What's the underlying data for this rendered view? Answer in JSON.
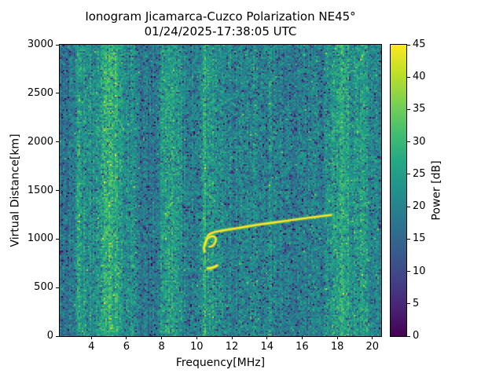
{
  "chart_data": {
    "type": "heatmap",
    "title": "Ionogram Jicamarca-Cuzco Polarization NE45°",
    "subtitle": "01/24/2025-17:38:05 UTC",
    "xlabel": "Frequency[MHz]",
    "ylabel": "Virtual Distance[km]",
    "colorbar_label": "Power [dB]",
    "xlim": [
      2.2,
      20.5
    ],
    "ylim": [
      0,
      3000
    ],
    "clim": [
      0,
      45
    ],
    "x_ticks": [
      4,
      6,
      8,
      10,
      12,
      14,
      16,
      18,
      20
    ],
    "y_ticks": [
      0,
      500,
      1000,
      1500,
      2000,
      2500,
      3000
    ],
    "colorbar_ticks": [
      0,
      5,
      10,
      15,
      20,
      25,
      30,
      35,
      40,
      45
    ],
    "colormap": "viridis",
    "colormap_stops": [
      [
        0.0,
        "#440154"
      ],
      [
        0.1,
        "#482475"
      ],
      [
        0.2,
        "#414487"
      ],
      [
        0.3,
        "#355f8d"
      ],
      [
        0.4,
        "#2a788e"
      ],
      [
        0.5,
        "#21918c"
      ],
      [
        0.6,
        "#22a884"
      ],
      [
        0.7,
        "#44bf70"
      ],
      [
        0.8,
        "#7ad151"
      ],
      [
        0.9,
        "#bddf26"
      ],
      [
        1.0,
        "#fde725"
      ]
    ],
    "trace_color": "#fde725",
    "trace_glow_color": "#7ad151",
    "noise": {
      "seed": 20250124,
      "base_db": 20.5,
      "amplitude_db": 9,
      "column_jitter_db": 5,
      "dark_speckle_prob": 0.08,
      "bright_speckle_prob": 0.015
    },
    "interference_bands": [
      {
        "center_mhz": 3.27,
        "width_mhz": 0.06,
        "boost_db": 7
      },
      {
        "center_mhz": 3.7,
        "width_mhz": 0.3,
        "boost_db": 2.5
      },
      {
        "center_mhz": 5.15,
        "width_mhz": 0.55,
        "boost_db": 8
      },
      {
        "center_mhz": 6.35,
        "width_mhz": 0.1,
        "boost_db": 3.5
      },
      {
        "center_mhz": 8.35,
        "width_mhz": 0.3,
        "boost_db": 7
      },
      {
        "center_mhz": 9.0,
        "width_mhz": 0.07,
        "boost_db": 3.5
      },
      {
        "center_mhz": 10.43,
        "width_mhz": 0.05,
        "boost_db": 9
      },
      {
        "center_mhz": 10.95,
        "width_mhz": 0.3,
        "boost_db": 3.5
      },
      {
        "center_mhz": 14.2,
        "width_mhz": 0.08,
        "boost_db": 2
      },
      {
        "center_mhz": 18.3,
        "width_mhz": 0.5,
        "boost_db": 7
      },
      {
        "center_mhz": 19.5,
        "width_mhz": 0.25,
        "boost_db": 4
      },
      {
        "center_mhz": 2.5,
        "width_mhz": 0.3,
        "boost_db": -4
      },
      {
        "center_mhz": 7.2,
        "width_mhz": 0.5,
        "boost_db": -3
      },
      {
        "center_mhz": 9.7,
        "width_mhz": 0.25,
        "boost_db": -2
      },
      {
        "center_mhz": 16.0,
        "width_mhz": 1.5,
        "boost_db": -1.5
      }
    ],
    "echo_traces": {
      "main_trace": [
        [
          10.5,
          940
        ],
        [
          10.55,
          1000
        ],
        [
          10.7,
          1048
        ],
        [
          11.0,
          1072
        ],
        [
          11.6,
          1092
        ],
        [
          12.5,
          1118
        ],
        [
          13.5,
          1148
        ],
        [
          14.5,
          1172
        ],
        [
          15.5,
          1198
        ],
        [
          16.5,
          1222
        ],
        [
          17.3,
          1240
        ],
        [
          17.65,
          1248
        ]
      ],
      "cusp": [
        [
          10.45,
          868
        ],
        [
          10.4,
          905
        ],
        [
          10.46,
          955
        ],
        [
          10.6,
          1005
        ],
        [
          10.8,
          1028
        ],
        [
          11.0,
          1026
        ],
        [
          11.1,
          998
        ],
        [
          11.04,
          958
        ],
        [
          10.9,
          928
        ],
        [
          10.72,
          920
        ]
      ],
      "second_hop": [
        [
          10.62,
          698
        ],
        [
          10.82,
          702
        ],
        [
          11.0,
          712
        ],
        [
          11.16,
          728
        ]
      ]
    }
  }
}
